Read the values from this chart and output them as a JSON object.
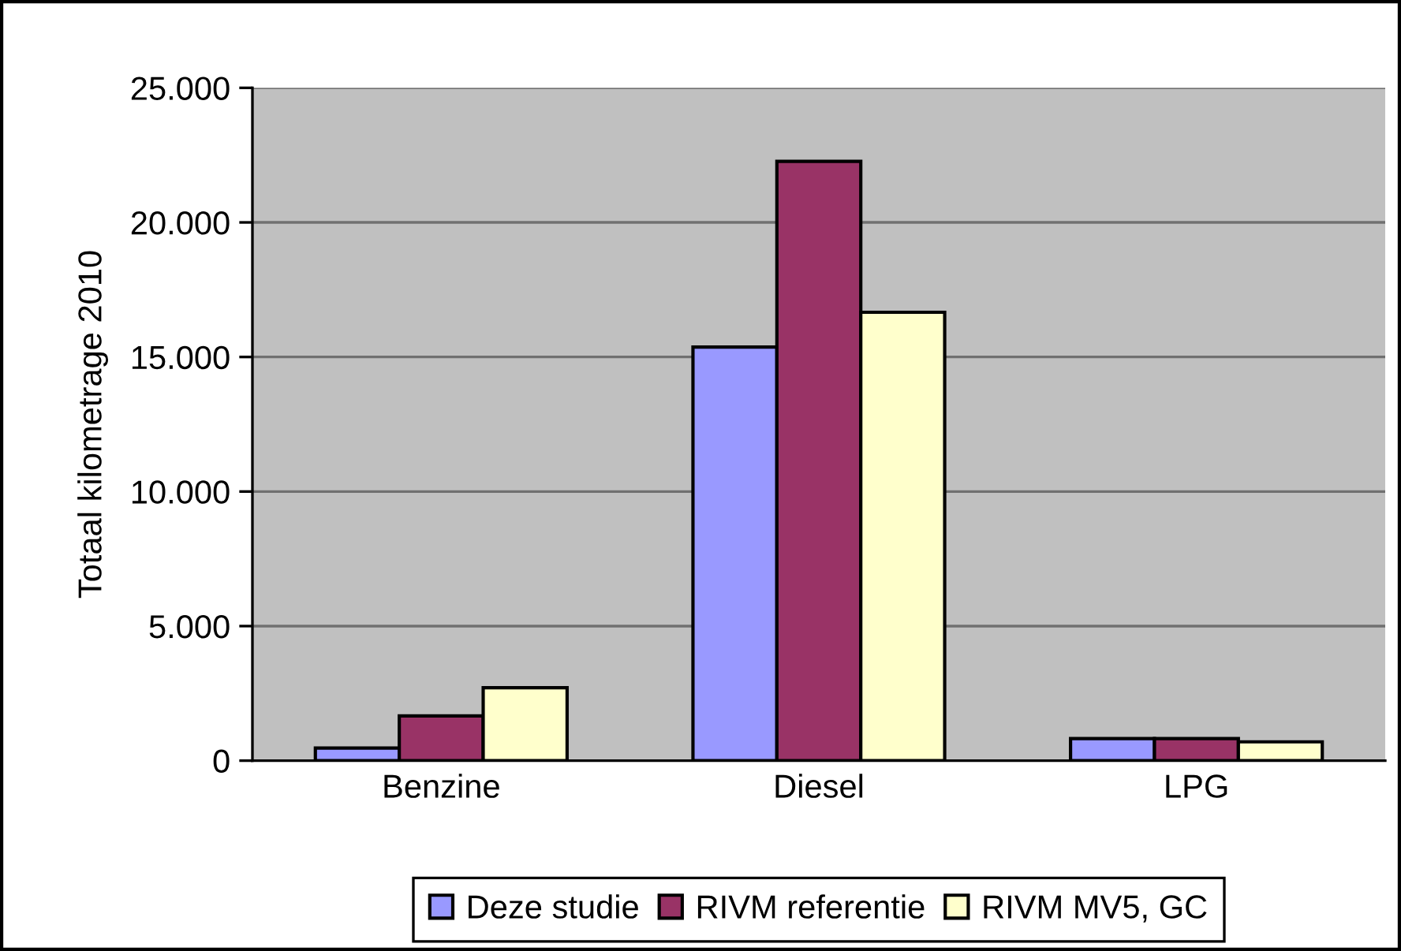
{
  "chart_data": {
    "type": "bar",
    "ylabel": "Totaal kilometrage 2010",
    "categories": [
      "Benzine",
      "Diesel",
      "LPG"
    ],
    "series": [
      {
        "name": "Deze studie",
        "color": "#9999ff",
        "values": [
          470,
          15370,
          820
        ]
      },
      {
        "name": "RIVM referentie",
        "color": "#993366",
        "values": [
          1660,
          22270,
          820
        ]
      },
      {
        "name": "RIVM MV5, GC",
        "color": "#ffffcc",
        "values": [
          2710,
          16660,
          700
        ]
      }
    ],
    "ylim": [
      0,
      25000
    ],
    "yticks": [
      0,
      {
        "value": 5000,
        "label": "5.000"
      },
      {
        "value": 10000,
        "label": "10.000"
      },
      {
        "value": 15000,
        "label": "15.000"
      },
      {
        "value": 20000,
        "label": "20.000"
      },
      {
        "value": 25000,
        "label": "25.000"
      }
    ],
    "grid": "y",
    "legend": "bottom"
  }
}
